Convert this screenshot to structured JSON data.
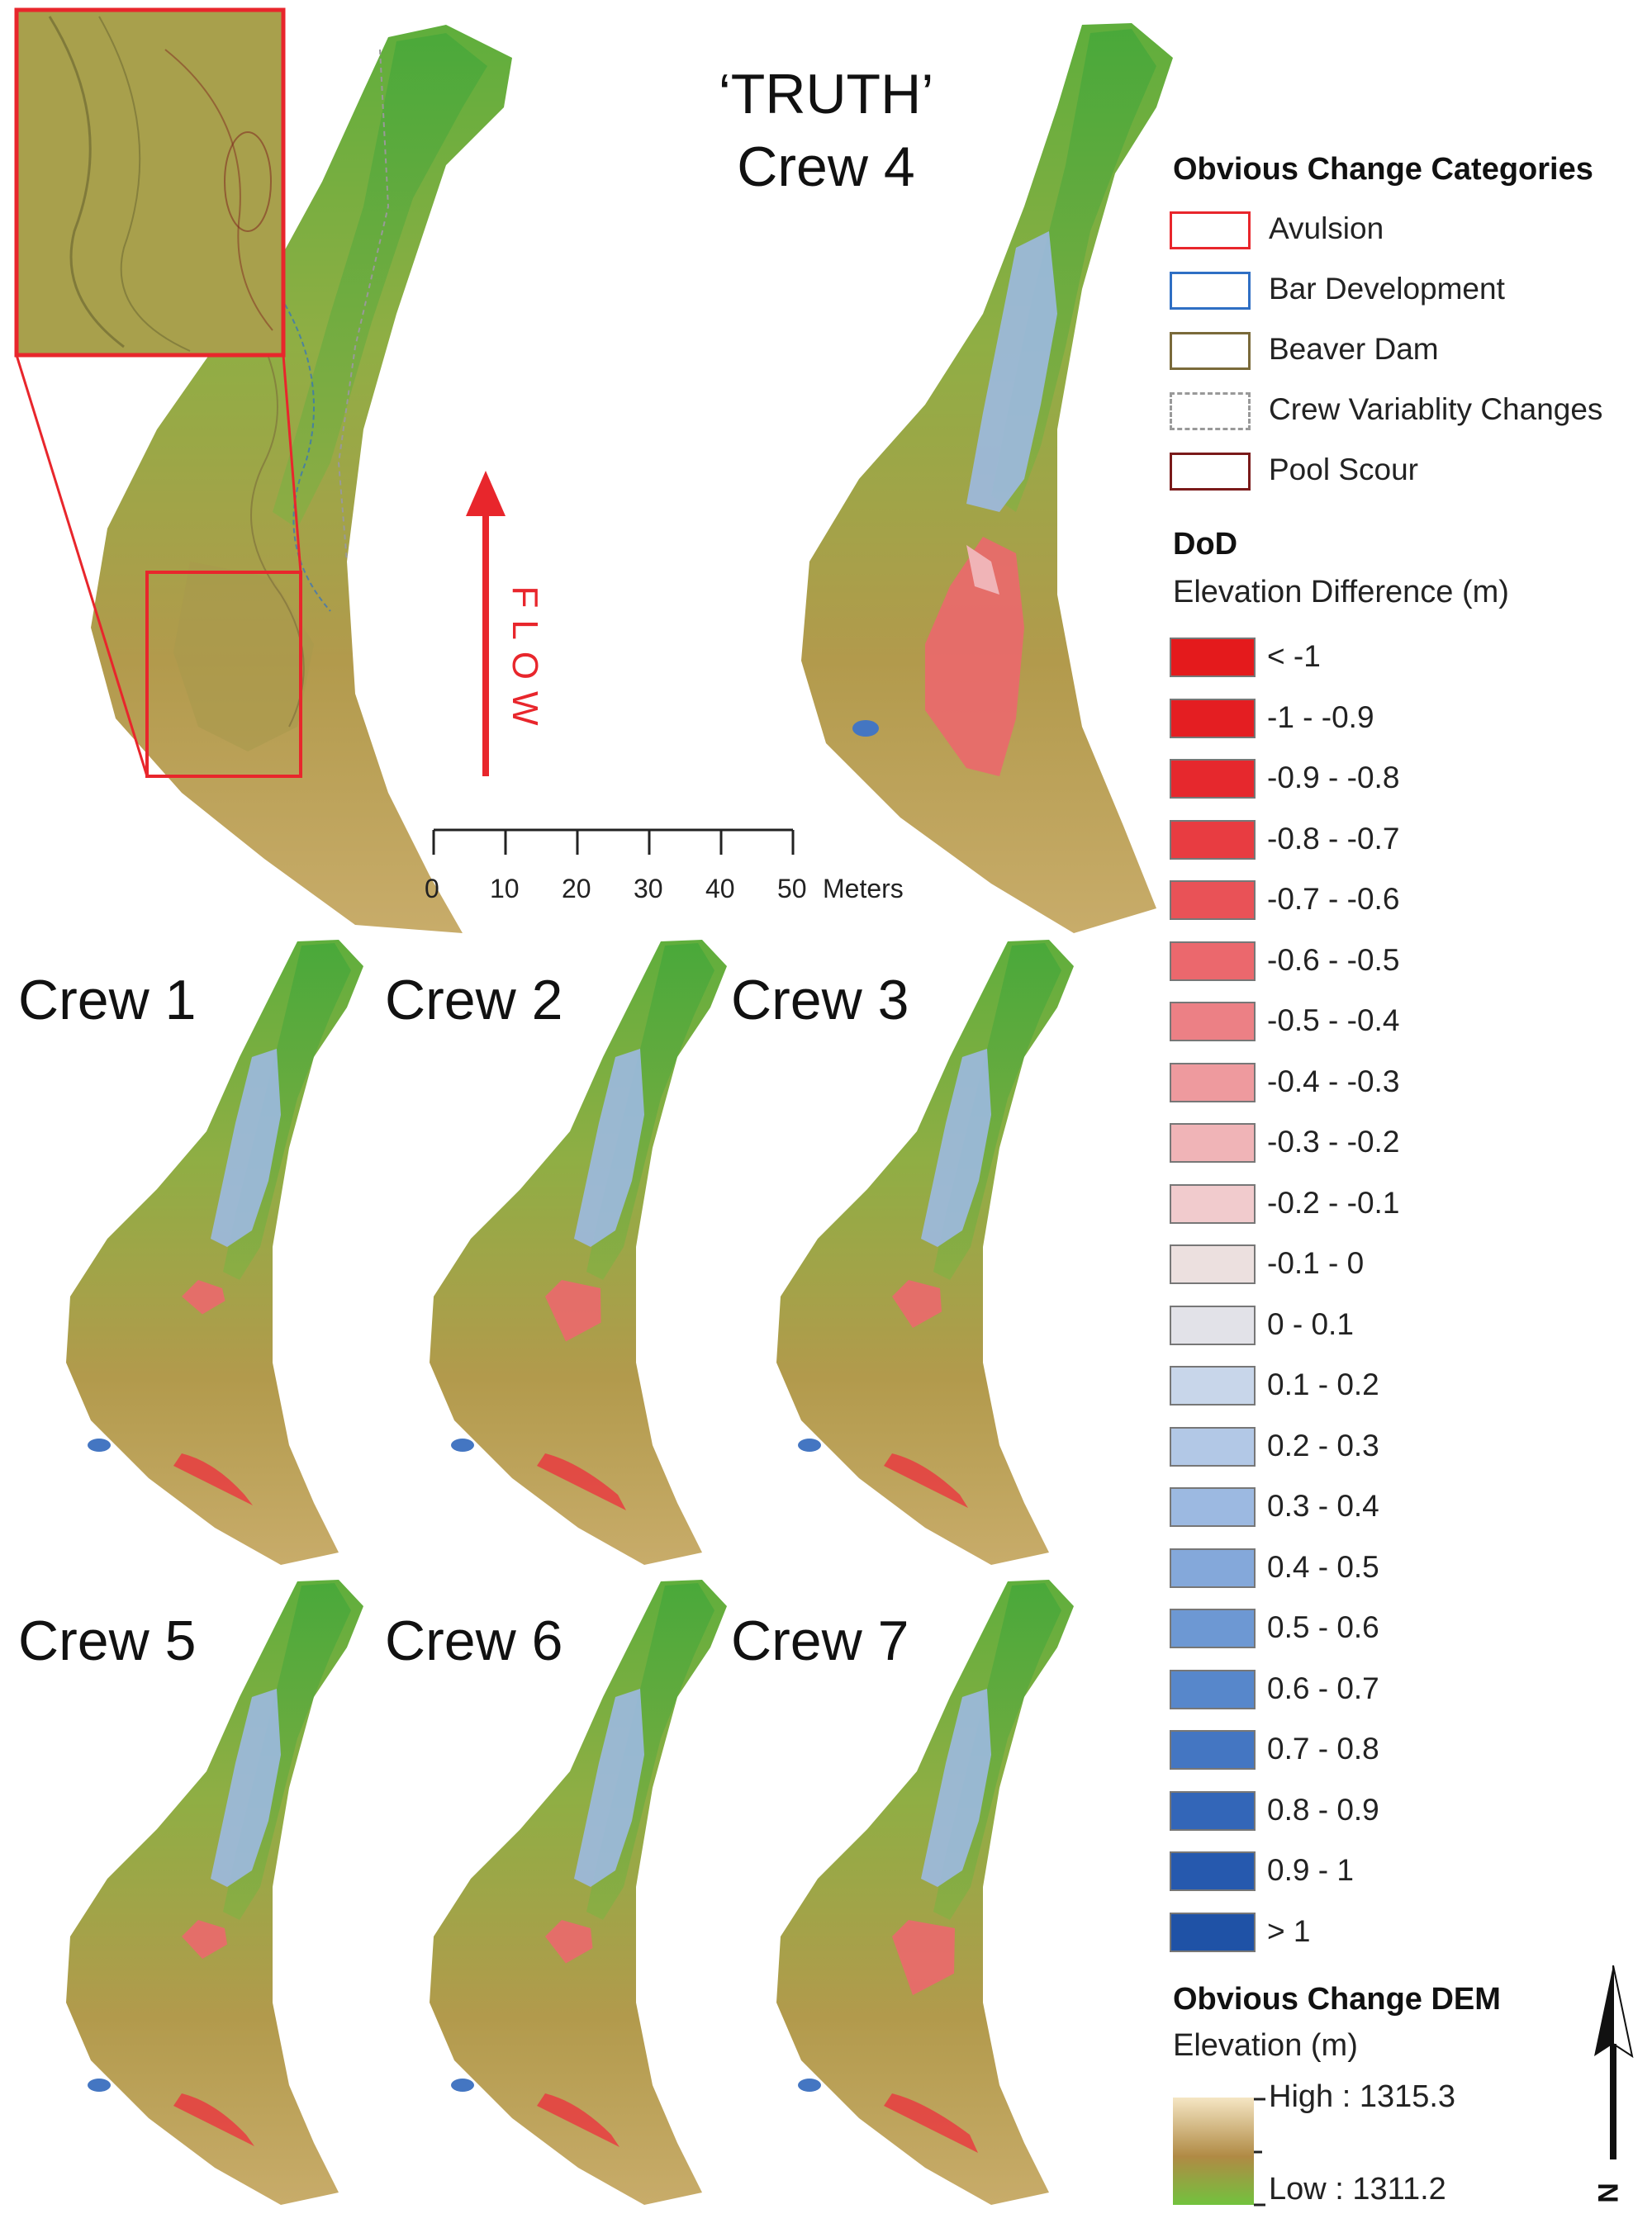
{
  "truth_title": {
    "line1": "‘TRUTH’",
    "line2": "Crew 4"
  },
  "flow_label": "FLOW",
  "scale_bar": {
    "ticks": [
      "0",
      "10",
      "20",
      "30",
      "40",
      "50"
    ],
    "unit": "Meters"
  },
  "panels": [
    {
      "label": "Crew 1",
      "cut": 0.15,
      "fill": 0.15
    },
    {
      "label": "Crew 2",
      "cut": 0.45,
      "fill": 0.2
    },
    {
      "label": "Crew 3",
      "cut": 0.3,
      "fill": 0.15
    },
    {
      "label": "Crew 5",
      "cut": 0.2,
      "fill": 0.15
    },
    {
      "label": "Crew 6",
      "cut": 0.25,
      "fill": 0.15
    },
    {
      "label": "Crew 7",
      "cut": 0.6,
      "fill": 0.2
    }
  ],
  "legend": {
    "categories_title": "Obvious Change Categories",
    "categories": [
      {
        "label": "Avulsion",
        "color": "#e8262c",
        "style": "solid"
      },
      {
        "label": "Bar Development",
        "color": "#2f6fc4",
        "style": "solid"
      },
      {
        "label": "Beaver Dam",
        "color": "#7a6a3a",
        "style": "solid"
      },
      {
        "label": "Crew Variablity Changes",
        "color": "#999999",
        "style": "dashed"
      },
      {
        "label": "Pool Scour",
        "color": "#7a1a1a",
        "style": "solid"
      }
    ],
    "dod_title": "DoD",
    "dod_subtitle": "Elevation Difference (m)",
    "dod_classes": [
      {
        "label": "< -1",
        "color": "#e41a1c"
      },
      {
        "label": "-1 - -0.9",
        "color": "#e41e22"
      },
      {
        "label": "-0.9 - -0.8",
        "color": "#e6282d"
      },
      {
        "label": "-0.8 - -0.7",
        "color": "#e83c41"
      },
      {
        "label": "-0.7 - -0.6",
        "color": "#e95257"
      },
      {
        "label": "-0.6 - -0.5",
        "color": "#eb686d"
      },
      {
        "label": "-0.5 - -0.4",
        "color": "#ec8085"
      },
      {
        "label": "-0.4 - -0.3",
        "color": "#ee9a9e"
      },
      {
        "label": "-0.3 - -0.2",
        "color": "#f0b4b7"
      },
      {
        "label": "-0.2 - -0.1",
        "color": "#f1cbcd"
      },
      {
        "label": "-0.1 - 0",
        "color": "#ece0df"
      },
      {
        "label": "0 - 0.1",
        "color": "#e2e2e8"
      },
      {
        "label": "0.1 - 0.2",
        "color": "#c8d6ea"
      },
      {
        "label": "0.2 - 0.3",
        "color": "#b2c8e6"
      },
      {
        "label": "0.3 - 0.4",
        "color": "#9cb9e1"
      },
      {
        "label": "0.4 - 0.5",
        "color": "#84a8da"
      },
      {
        "label": "0.5 - 0.6",
        "color": "#6d98d3"
      },
      {
        "label": "0.6 - 0.7",
        "color": "#5787cb"
      },
      {
        "label": "0.7 - 0.8",
        "color": "#4476c2"
      },
      {
        "label": "0.8 - 0.9",
        "color": "#3366b8"
      },
      {
        "label": "0.9 - 1",
        "color": "#2659ae"
      },
      {
        "label": "> 1",
        "color": "#1f52a6"
      }
    ],
    "dem_title": "Obvious Change DEM",
    "dem_subtitle": "Elevation (m)",
    "dem_high": "High : 1315.3",
    "dem_low": "Low : 1311.2",
    "dem_colors": {
      "high": "#f5e6c4",
      "mid": "#b08a44",
      "low": "#72c23e"
    }
  },
  "north_label": "N",
  "colors": {
    "avulsion_red": "#e8262c",
    "flow_red": "#e8262c",
    "terrain_brown": "#b59a4a",
    "terrain_green": "#6fb33f"
  }
}
